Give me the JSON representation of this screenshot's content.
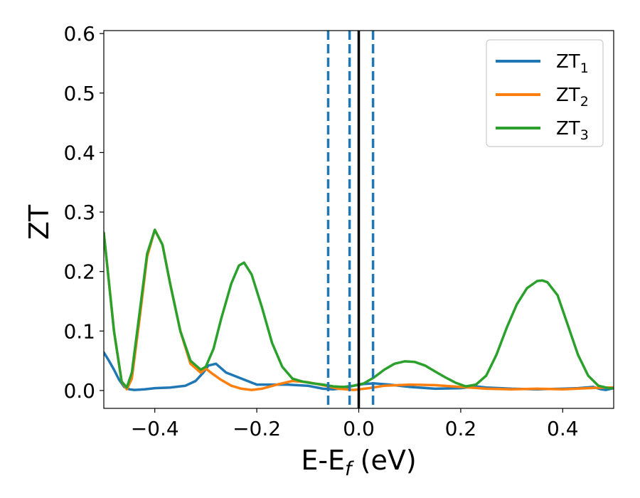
{
  "chart_data": {
    "type": "line",
    "title": "",
    "xlabel": "E-E",
    "xlabel_sub": "f",
    "xlabel_unit": " (eV)",
    "ylabel": "ZT",
    "xlim": [
      -0.5,
      0.5
    ],
    "ylim": [
      -0.03,
      0.605
    ],
    "xticks": [
      -0.4,
      -0.2,
      0.0,
      0.2,
      0.4
    ],
    "xtick_labels": [
      "−0.4",
      "−0.2",
      "0.0",
      "0.2",
      "0.4"
    ],
    "yticks": [
      0.0,
      0.1,
      0.2,
      0.3,
      0.4,
      0.5,
      0.6
    ],
    "ytick_labels": [
      "0.0",
      "0.1",
      "0.2",
      "0.3",
      "0.4",
      "0.5",
      "0.6"
    ],
    "grid": false,
    "legend_position": "top-right",
    "vertical_lines": [
      {
        "x": -0.06,
        "style": "dashed",
        "color": "#1f77b4"
      },
      {
        "x": -0.018,
        "style": "dashed",
        "color": "#1f77b4"
      },
      {
        "x": 0.0,
        "style": "solid",
        "color": "#000000"
      },
      {
        "x": 0.028,
        "style": "dashed",
        "color": "#1f77b4"
      }
    ],
    "series": [
      {
        "name": "ZT",
        "sub": "1",
        "color": "#1f77b4",
        "points": [
          [
            -0.5,
            0.064
          ],
          [
            -0.49,
            0.05
          ],
          [
            -0.48,
            0.035
          ],
          [
            -0.47,
            0.018
          ],
          [
            -0.46,
            0.006
          ],
          [
            -0.45,
            0.002
          ],
          [
            -0.44,
            0.001
          ],
          [
            -0.42,
            0.002
          ],
          [
            -0.4,
            0.004
          ],
          [
            -0.37,
            0.005
          ],
          [
            -0.34,
            0.008
          ],
          [
            -0.32,
            0.016
          ],
          [
            -0.305,
            0.03
          ],
          [
            -0.295,
            0.042
          ],
          [
            -0.28,
            0.045
          ],
          [
            -0.26,
            0.03
          ],
          [
            -0.2,
            0.01
          ],
          [
            -0.14,
            0.01
          ],
          [
            -0.1,
            0.008
          ],
          [
            -0.07,
            0.003
          ],
          [
            -0.05,
            0.002
          ],
          [
            -0.03,
            0.004
          ],
          [
            -0.01,
            0.008
          ],
          [
            0.01,
            0.011
          ],
          [
            0.03,
            0.012
          ],
          [
            0.06,
            0.01
          ],
          [
            0.1,
            0.006
          ],
          [
            0.15,
            0.003
          ],
          [
            0.2,
            0.004
          ],
          [
            0.23,
            0.007
          ],
          [
            0.25,
            0.005
          ],
          [
            0.3,
            0.003
          ],
          [
            0.35,
            0.002
          ],
          [
            0.4,
            0.003
          ],
          [
            0.43,
            0.004
          ],
          [
            0.46,
            0.006
          ],
          [
            0.475,
            0.002
          ],
          [
            0.485,
            0.001
          ],
          [
            0.5,
            0.004
          ]
        ]
      },
      {
        "name": "ZT",
        "sub": "2",
        "color": "#ff7f0e",
        "points": [
          [
            -0.5,
            0.265
          ],
          [
            -0.48,
            0.1
          ],
          [
            -0.465,
            0.015
          ],
          [
            -0.455,
            0.002
          ],
          [
            -0.445,
            0.02
          ],
          [
            -0.43,
            0.12
          ],
          [
            -0.415,
            0.225
          ],
          [
            -0.4,
            0.27
          ],
          [
            -0.385,
            0.245
          ],
          [
            -0.37,
            0.18
          ],
          [
            -0.35,
            0.1
          ],
          [
            -0.33,
            0.045
          ],
          [
            -0.31,
            0.03
          ],
          [
            -0.3,
            0.037
          ],
          [
            -0.29,
            0.03
          ],
          [
            -0.27,
            0.018
          ],
          [
            -0.25,
            0.008
          ],
          [
            -0.23,
            0.003
          ],
          [
            -0.21,
            0.001
          ],
          [
            -0.19,
            0.003
          ],
          [
            -0.16,
            0.01
          ],
          [
            -0.13,
            0.016
          ],
          [
            -0.1,
            0.014
          ],
          [
            -0.07,
            0.009
          ],
          [
            -0.04,
            0.003
          ],
          [
            -0.01,
            0.001
          ],
          [
            0.02,
            0.004
          ],
          [
            0.05,
            0.008
          ],
          [
            0.1,
            0.01
          ],
          [
            0.15,
            0.009
          ],
          [
            0.2,
            0.006
          ],
          [
            0.25,
            0.003
          ],
          [
            0.3,
            0.002
          ],
          [
            0.35,
            0.003
          ],
          [
            0.4,
            0.002
          ],
          [
            0.45,
            0.004
          ],
          [
            0.48,
            0.005
          ],
          [
            0.5,
            0.005
          ]
        ]
      },
      {
        "name": "ZT",
        "sub": "3",
        "color": "#2ca02c",
        "points": [
          [
            -0.5,
            0.265
          ],
          [
            -0.48,
            0.1
          ],
          [
            -0.465,
            0.015
          ],
          [
            -0.455,
            0.005
          ],
          [
            -0.445,
            0.03
          ],
          [
            -0.43,
            0.13
          ],
          [
            -0.415,
            0.23
          ],
          [
            -0.4,
            0.27
          ],
          [
            -0.385,
            0.245
          ],
          [
            -0.37,
            0.18
          ],
          [
            -0.35,
            0.1
          ],
          [
            -0.33,
            0.05
          ],
          [
            -0.31,
            0.035
          ],
          [
            -0.3,
            0.04
          ],
          [
            -0.285,
            0.07
          ],
          [
            -0.27,
            0.12
          ],
          [
            -0.25,
            0.18
          ],
          [
            -0.235,
            0.21
          ],
          [
            -0.225,
            0.215
          ],
          [
            -0.21,
            0.195
          ],
          [
            -0.19,
            0.14
          ],
          [
            -0.17,
            0.08
          ],
          [
            -0.15,
            0.04
          ],
          [
            -0.13,
            0.02
          ],
          [
            -0.11,
            0.015
          ],
          [
            -0.09,
            0.012
          ],
          [
            -0.07,
            0.01
          ],
          [
            -0.05,
            0.007
          ],
          [
            -0.03,
            0.006
          ],
          [
            -0.01,
            0.008
          ],
          [
            0.01,
            0.012
          ],
          [
            0.03,
            0.022
          ],
          [
            0.05,
            0.035
          ],
          [
            0.07,
            0.045
          ],
          [
            0.09,
            0.049
          ],
          [
            0.11,
            0.048
          ],
          [
            0.13,
            0.042
          ],
          [
            0.15,
            0.032
          ],
          [
            0.17,
            0.022
          ],
          [
            0.19,
            0.013
          ],
          [
            0.21,
            0.007
          ],
          [
            0.23,
            0.01
          ],
          [
            0.25,
            0.025
          ],
          [
            0.27,
            0.06
          ],
          [
            0.29,
            0.105
          ],
          [
            0.31,
            0.145
          ],
          [
            0.33,
            0.172
          ],
          [
            0.35,
            0.184
          ],
          [
            0.36,
            0.185
          ],
          [
            0.37,
            0.182
          ],
          [
            0.39,
            0.16
          ],
          [
            0.41,
            0.11
          ],
          [
            0.43,
            0.06
          ],
          [
            0.45,
            0.025
          ],
          [
            0.47,
            0.008
          ],
          [
            0.49,
            0.004
          ],
          [
            0.5,
            0.004
          ]
        ]
      }
    ]
  }
}
